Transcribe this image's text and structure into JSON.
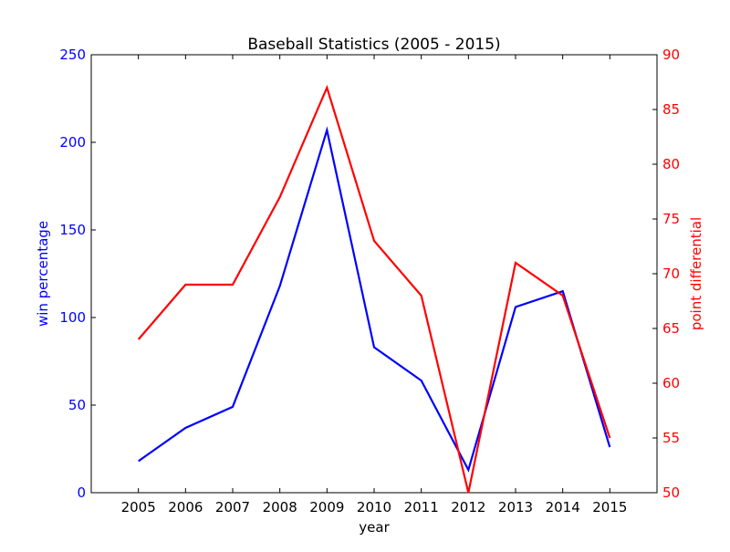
{
  "chart_data": {
    "type": "line",
    "title": "Baseball Statistics (2005 - 2015)",
    "xlabel": "year",
    "ylabel_left": "win percentage",
    "ylabel_right": "point differential",
    "x": [
      2005,
      2006,
      2007,
      2008,
      2009,
      2010,
      2011,
      2012,
      2013,
      2014,
      2015
    ],
    "xlim": [
      2004,
      2016
    ],
    "xticks": [
      "2005",
      "2006",
      "2007",
      "2008",
      "2009",
      "2010",
      "2011",
      "2012",
      "2013",
      "2014",
      "2015"
    ],
    "series": [
      {
        "axis": "left",
        "color": "#0000ff",
        "values": [
          18,
          37,
          49,
          118,
          207,
          83,
          64,
          13,
          106,
          115,
          26
        ]
      },
      {
        "axis": "right",
        "color": "#ff0000",
        "values": [
          64,
          69,
          69,
          77,
          87,
          73,
          68,
          50,
          71,
          68,
          55
        ]
      }
    ],
    "ylim_left": [
      0,
      250
    ],
    "yticks_left": [
      "0",
      "50",
      "100",
      "150",
      "200",
      "250"
    ],
    "ylim_right": [
      50,
      90
    ],
    "yticks_right": [
      "50",
      "55",
      "60",
      "65",
      "70",
      "75",
      "80",
      "85",
      "90"
    ],
    "left_axis_color": "#0000ff",
    "right_axis_color": "#ff0000",
    "grid": false,
    "legend": "none"
  }
}
